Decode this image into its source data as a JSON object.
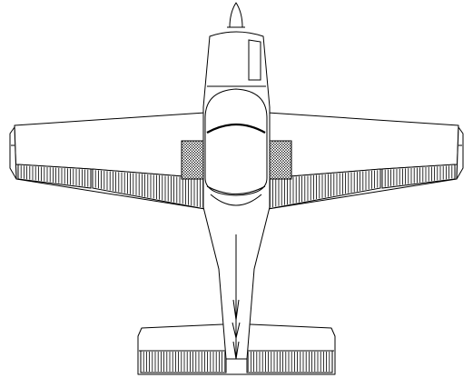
{
  "colors": {
    "line": "#000000",
    "background": "#ffffff",
    "walkway": "#9a9a9a"
  }
}
